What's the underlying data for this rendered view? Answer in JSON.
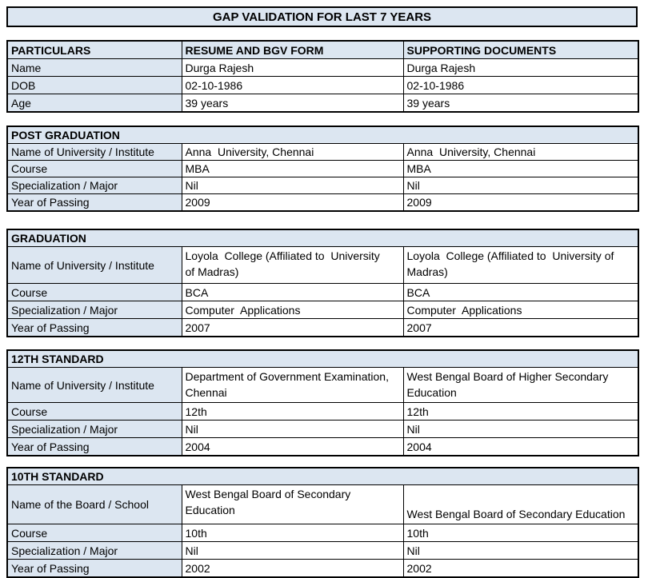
{
  "title": "GAP VALIDATION FOR LAST 7 YEARS",
  "colors": {
    "header_bg": "#dce6f1",
    "border": "#000000",
    "text": "#000000"
  },
  "tables": [
    {
      "name": "particulars",
      "headers": [
        "PARTICULARS",
        "RESUME AND BGV FORM",
        "SUPPORTING DOCUMENTS"
      ],
      "rows": [
        [
          "Name",
          "Durga Rajesh",
          "Durga Rajesh"
        ],
        [
          "DOB",
          "02-10-1986",
          "02-10-1986"
        ],
        [
          "Age",
          "39 years",
          "39 years"
        ]
      ]
    },
    {
      "name": "post-graduation",
      "section": "POST GRADUATION",
      "rows": [
        [
          "Name of University / Institute",
          "Anna  University, Chennai",
          "Anna  University, Chennai"
        ],
        [
          "Course",
          "MBA",
          "MBA"
        ],
        [
          "Specialization / Major",
          "Nil",
          "Nil"
        ],
        [
          "Year of Passing",
          "2009",
          "2009"
        ]
      ]
    },
    {
      "name": "graduation",
      "section": "GRADUATION",
      "rows": [
        [
          "Name of University / Institute",
          "Loyola  College (Affiliated to  University\nof Madras)",
          "Loyola  College (Affiliated to  University of\nMadras)"
        ],
        [
          "Course",
          "BCA",
          "BCA"
        ],
        [
          "Specialization / Major",
          "Computer  Applications",
          "Computer  Applications"
        ],
        [
          "Year of Passing",
          "2007",
          "2007"
        ]
      ]
    },
    {
      "name": "12th-standard",
      "section": "12TH STANDARD",
      "rows": [
        [
          "Name of University / Institute",
          "Department of Government Examination,\nChennai",
          "West Bengal Board of Higher Secondary\nEducation"
        ],
        [
          "Course",
          "12th",
          "12th"
        ],
        [
          "Specialization / Major",
          "Nil",
          "Nil"
        ],
        [
          "Year of Passing",
          "2004",
          "2004"
        ]
      ]
    },
    {
      "name": "10th-standard",
      "section": "10TH STANDARD",
      "rows": [
        [
          "Name of the Board / School",
          "West Bengal Board of Secondary\nEducation",
          "West Bengal Board of Secondary Education"
        ],
        [
          "Course",
          "10th",
          "10th"
        ],
        [
          "Specialization / Major",
          "Nil",
          "Nil"
        ],
        [
          "Year of Passing",
          "2002",
          "2002"
        ]
      ]
    }
  ]
}
